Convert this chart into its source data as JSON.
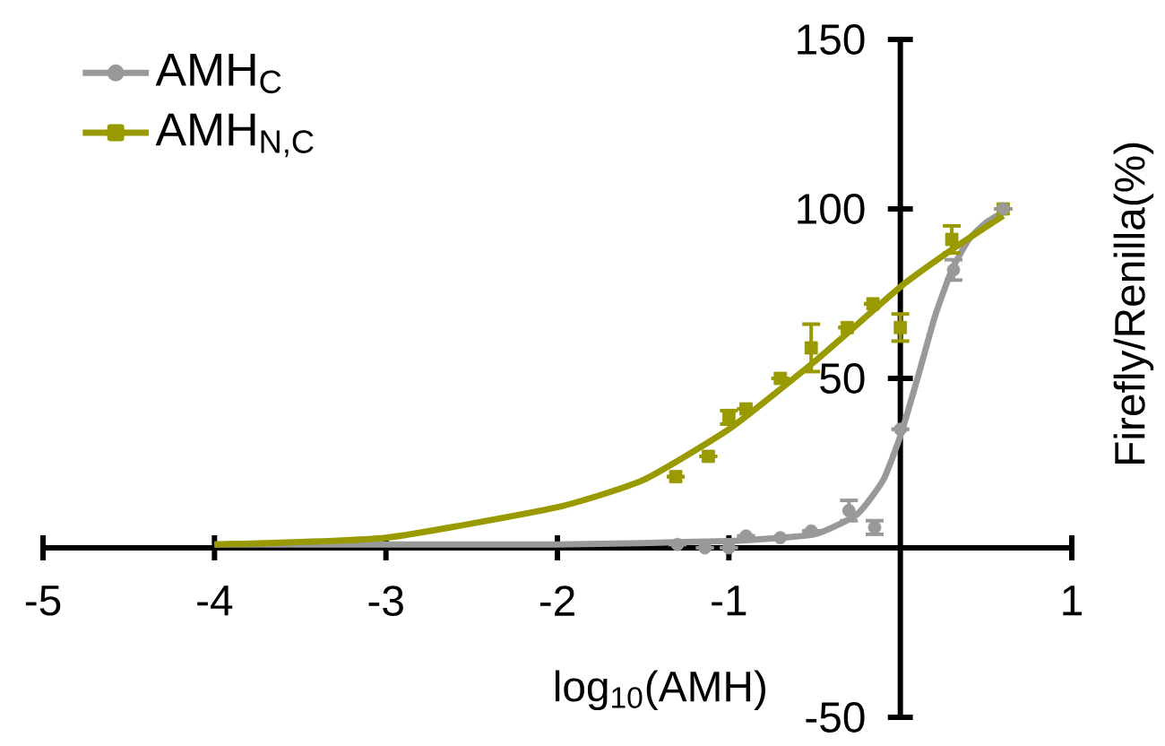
{
  "chart_data": {
    "type": "scatter",
    "xlabel": "log$_{10}$(AMH)",
    "ylabel": "Firefly/Renilla(%)",
    "xlim": [
      -5,
      1
    ],
    "ylim": [
      -50,
      150
    ],
    "xticks": [
      -5,
      -4,
      -3,
      -2,
      -1,
      1
    ],
    "yticks": [
      -50,
      50,
      100,
      150
    ],
    "grid": false,
    "legend": "top left",
    "series": [
      {
        "name": "AMH$_{C}$",
        "type": "line",
        "color": "#999999",
        "x": [
          -4,
          -3,
          -2,
          -1,
          -0.5,
          -0.25,
          -0.1,
          0,
          0.1,
          0.2,
          0.3,
          0.4,
          0.5,
          0.6
        ],
        "values": [
          1,
          1,
          1,
          2,
          4,
          10,
          20,
          33,
          50,
          68,
          82,
          91,
          96,
          99
        ]
      },
      {
        "marker": "circle",
        "color": "#999999",
        "x": [
          -1.3,
          -1.14,
          -1.0,
          -0.9,
          -0.7,
          -0.52,
          -0.3,
          -0.15,
          0,
          0.31,
          0.6
        ],
        "values": [
          1,
          0,
          0,
          3.5,
          3,
          5,
          11,
          6,
          35,
          82,
          100
        ],
        "errors": [
          null,
          null,
          null,
          null,
          null,
          null,
          3,
          2,
          null,
          3,
          null
        ]
      },
      {
        "name": "AMH$_{N,C}$",
        "type": "line",
        "color": "#999900",
        "x": [
          -4,
          -3,
          -2,
          -1.5,
          -1,
          -0.5,
          0,
          0.3,
          0.6
        ],
        "values": [
          1,
          3,
          12,
          20,
          35,
          55,
          77,
          88,
          98
        ]
      },
      {
        "marker": "square",
        "color": "#999900",
        "x": [
          -1.31,
          -1.12,
          -1.0,
          -0.9,
          -0.7,
          -0.52,
          -0.31,
          -0.16,
          0,
          0.3,
          0.6
        ],
        "values": [
          21,
          27,
          38.5,
          41,
          50,
          59,
          65,
          72,
          65,
          91,
          100
        ],
        "errors": [
          null,
          null,
          2,
          null,
          null,
          7,
          null,
          null,
          4,
          4,
          null
        ]
      }
    ]
  }
}
